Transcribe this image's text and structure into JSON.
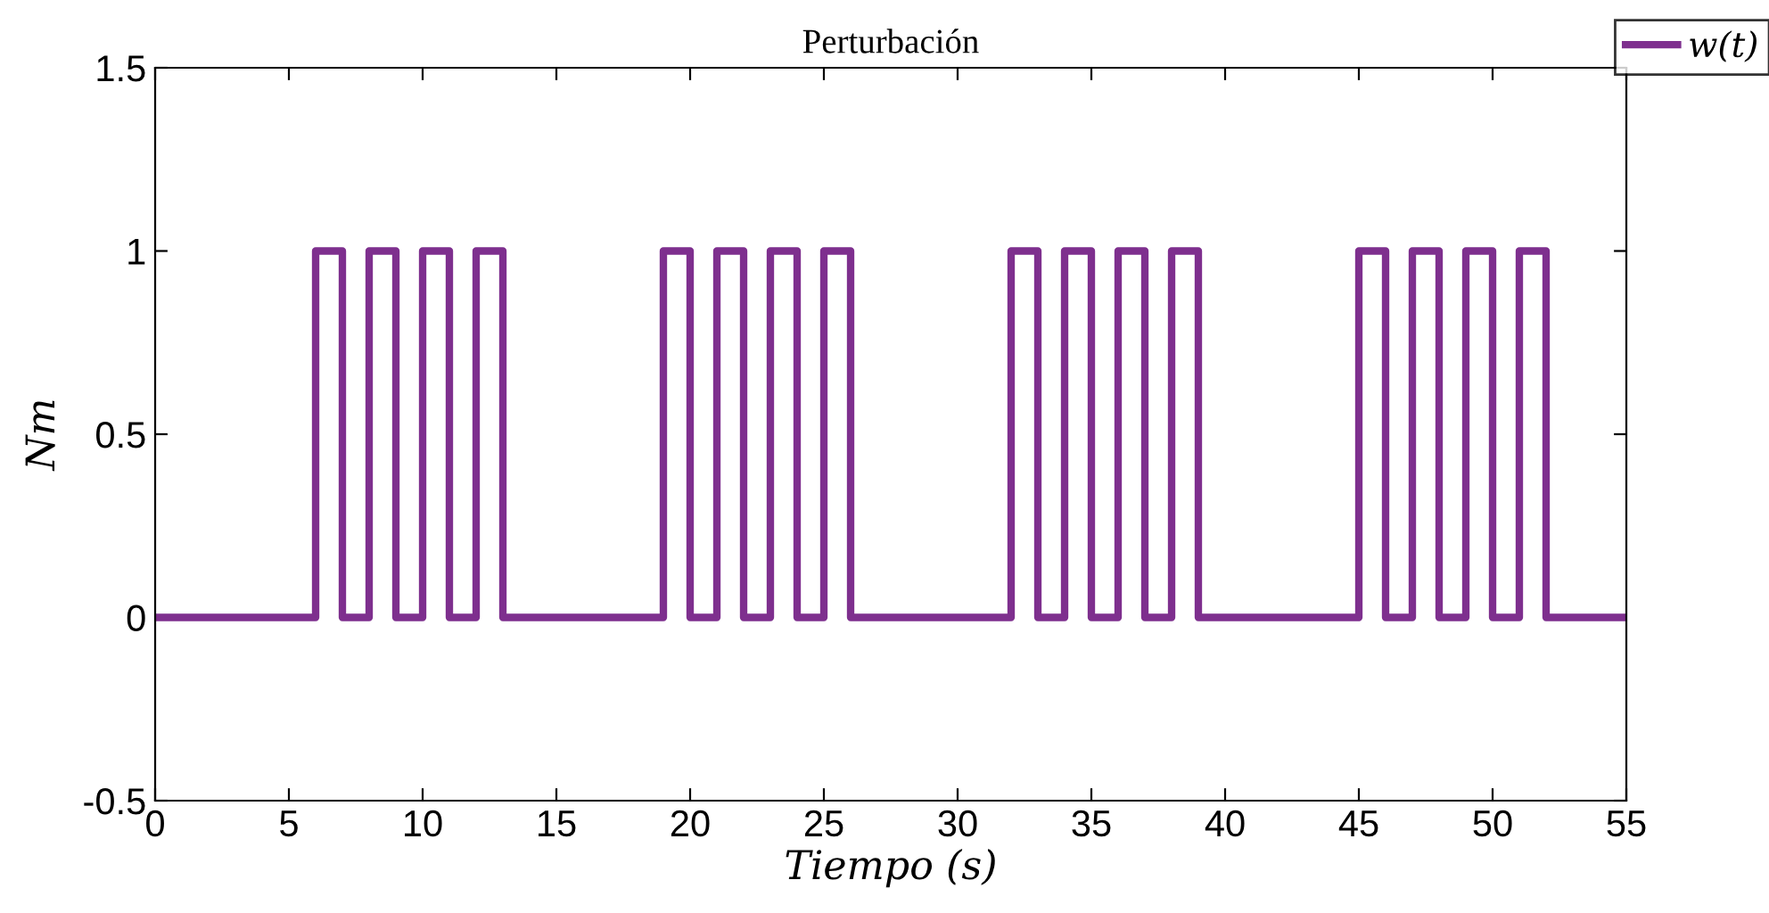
{
  "chart_data": {
    "type": "step",
    "title": "Perturbación",
    "xlabel": "Tiempo (s)",
    "ylabel": "Nm",
    "series": [
      {
        "name": "w(t)",
        "color": "#7e2f8e",
        "x": [
          0,
          6,
          7,
          8,
          9,
          10,
          11,
          12,
          13,
          19,
          20,
          21,
          22,
          23,
          24,
          25,
          26,
          32,
          33,
          34,
          35,
          36,
          37,
          38,
          39,
          45,
          46,
          47,
          48,
          49,
          50,
          51,
          52,
          55
        ],
        "values": [
          0,
          1,
          0,
          1,
          0,
          1,
          0,
          1,
          0,
          1,
          0,
          1,
          0,
          1,
          0,
          1,
          0,
          1,
          0,
          1,
          0,
          1,
          0,
          1,
          0,
          1,
          0,
          1,
          0,
          1,
          0,
          1,
          0,
          0
        ]
      }
    ],
    "xlim": [
      0,
      55
    ],
    "xticks": [
      0,
      5,
      10,
      15,
      20,
      25,
      30,
      35,
      40,
      45,
      50,
      55
    ],
    "ylim": [
      -0.5,
      1.5
    ],
    "yticks": [
      -0.5,
      0,
      0.5,
      1,
      1.5
    ],
    "grid": false,
    "legend": "top right",
    "line_style": "solid",
    "marker": "none"
  }
}
